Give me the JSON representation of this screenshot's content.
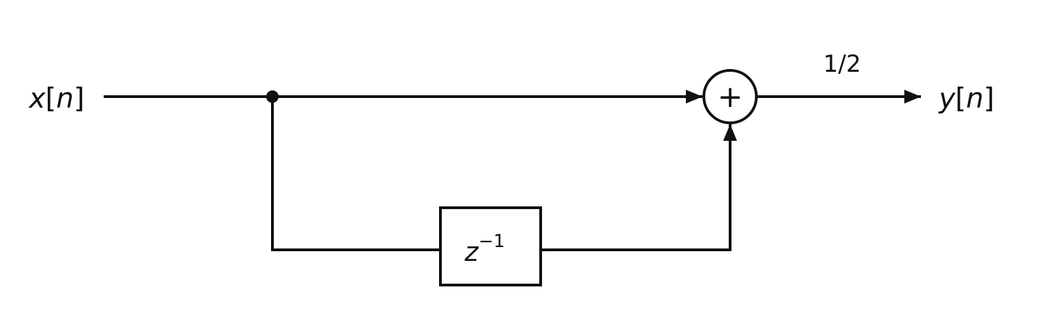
{
  "input_label": {
    "var": "x",
    "open": "[",
    "idx": "n",
    "close": "]"
  },
  "output_label": {
    "var": "y",
    "open": "[",
    "idx": "n",
    "close": "]"
  },
  "adder_symbol": "+",
  "delay_block": {
    "base": "z",
    "exponent": "−1"
  },
  "gain_label": "1/2",
  "colors": {
    "stroke": "#111111",
    "background": "#ffffff"
  }
}
